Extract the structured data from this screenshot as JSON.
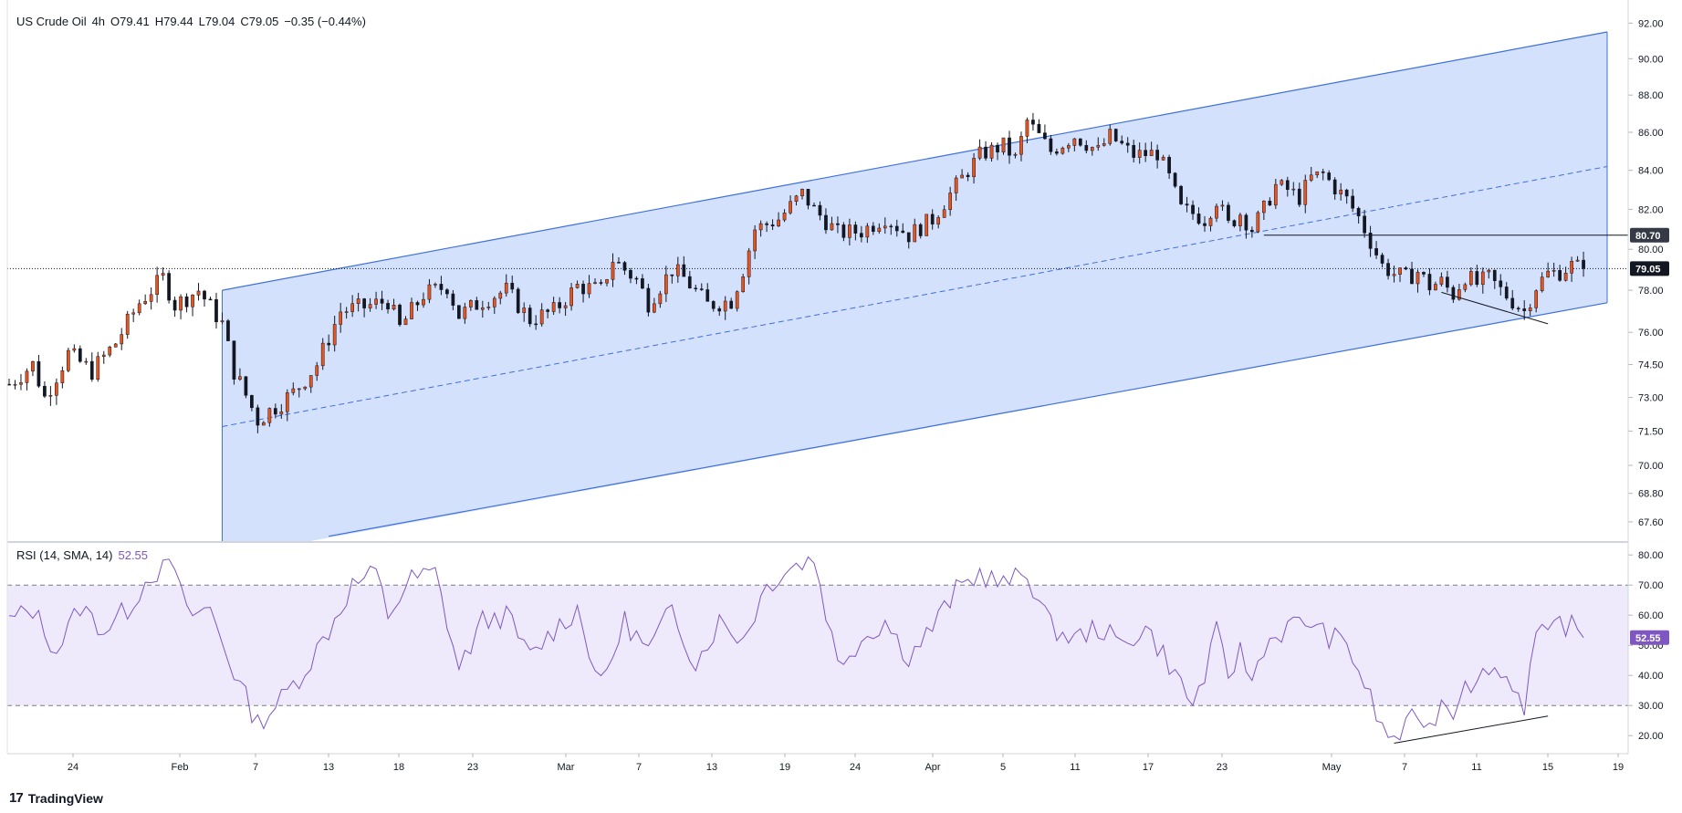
{
  "header": {
    "symbol": "US Crude Oil",
    "interval": "4h",
    "open": "O79.41",
    "high": "H79.44",
    "low": "L79.04",
    "close": "C79.05",
    "change": "−0.35 (−0.44%)"
  },
  "rsi_header": {
    "label": "RSI (14, SMA, 14)",
    "value": "52.55"
  },
  "brand": {
    "name": "TradingView",
    "logo": "17"
  },
  "colors": {
    "up": "#e8541c",
    "down": "#131722",
    "channel_fill": "#d4e1fc",
    "channel_line": "#3d6fe0",
    "rsi_line": "#7e57c2",
    "rsi_band": "#efeafb",
    "price_tag": "#131722"
  },
  "chart_data": [
    {
      "type": "candlestick",
      "title": "US Crude Oil, 4h",
      "y_ticks": [
        "92.00",
        "90.00",
        "88.00",
        "86.00",
        "84.00",
        "82.00",
        "80.00",
        "78.00",
        "76.00",
        "74.50",
        "73.00",
        "71.50",
        "70.00",
        "68.80",
        "67.60"
      ],
      "x_ticks": [
        "24",
        "Feb",
        "7",
        "13",
        "18",
        "23",
        "Mar",
        "7",
        "13",
        "19",
        "24",
        "Apr",
        "5",
        "11",
        "17",
        "23",
        "May",
        "7",
        "11",
        "15",
        "19"
      ],
      "ylim": [
        66.8,
        92.8
      ],
      "scale": "log",
      "price_labels": [
        {
          "label": "80.70",
          "value": 80.7
        },
        {
          "label": "79.05",
          "value": 79.05
        }
      ],
      "path_points": [
        {
          "t": 0,
          "p": 73.6
        },
        {
          "t": 2,
          "p": 74.5
        },
        {
          "t": 3,
          "p": 73.0
        },
        {
          "t": 5,
          "p": 75.0
        },
        {
          "t": 7,
          "p": 74.2
        },
        {
          "t": 9,
          "p": 75.5
        },
        {
          "t": 11,
          "p": 77.4
        },
        {
          "t": 13,
          "p": 78.6
        },
        {
          "t": 14,
          "p": 77.3
        },
        {
          "t": 16,
          "p": 78.0
        },
        {
          "t": 18,
          "p": 76.4
        },
        {
          "t": 19,
          "p": 74.2
        },
        {
          "t": 21,
          "p": 72.0
        },
        {
          "t": 22,
          "p": 72.4
        },
        {
          "t": 24,
          "p": 73.2
        },
        {
          "t": 26,
          "p": 74.5
        },
        {
          "t": 28,
          "p": 77.0
        },
        {
          "t": 30,
          "p": 77.2
        },
        {
          "t": 32,
          "p": 77.5
        },
        {
          "t": 33,
          "p": 76.2
        },
        {
          "t": 35,
          "p": 77.8
        },
        {
          "t": 37,
          "p": 78.2
        },
        {
          "t": 38,
          "p": 76.8
        },
        {
          "t": 40,
          "p": 77.5
        },
        {
          "t": 42,
          "p": 78.0
        },
        {
          "t": 44,
          "p": 76.6
        },
        {
          "t": 46,
          "p": 77.0
        },
        {
          "t": 48,
          "p": 78.2
        },
        {
          "t": 50,
          "p": 78.0
        },
        {
          "t": 51,
          "p": 79.5
        },
        {
          "t": 53,
          "p": 78.5
        },
        {
          "t": 54,
          "p": 77.4
        },
        {
          "t": 56,
          "p": 79.0
        },
        {
          "t": 57,
          "p": 78.6
        },
        {
          "t": 59,
          "p": 77.3
        },
        {
          "t": 61,
          "p": 77.5
        },
        {
          "t": 62,
          "p": 79.0
        },
        {
          "t": 63,
          "p": 81.0
        },
        {
          "t": 65,
          "p": 81.5
        },
        {
          "t": 67,
          "p": 82.8
        },
        {
          "t": 68,
          "p": 82.0
        },
        {
          "t": 70,
          "p": 80.8
        },
        {
          "t": 72,
          "p": 80.9
        },
        {
          "t": 74,
          "p": 81.6
        },
        {
          "t": 76,
          "p": 80.7
        },
        {
          "t": 78,
          "p": 81.5
        },
        {
          "t": 80,
          "p": 83.2
        },
        {
          "t": 82,
          "p": 84.8
        },
        {
          "t": 84,
          "p": 85.3
        },
        {
          "t": 85,
          "p": 84.6
        },
        {
          "t": 86,
          "p": 86.6
        },
        {
          "t": 87,
          "p": 85.8
        },
        {
          "t": 88,
          "p": 85.0
        },
        {
          "t": 90,
          "p": 85.8
        },
        {
          "t": 92,
          "p": 85.0
        },
        {
          "t": 93,
          "p": 85.8
        },
        {
          "t": 95,
          "p": 84.8
        },
        {
          "t": 97,
          "p": 84.9
        },
        {
          "t": 98,
          "p": 83.6
        },
        {
          "t": 99,
          "p": 82.0
        },
        {
          "t": 100,
          "p": 81.8
        },
        {
          "t": 101,
          "p": 81.5
        },
        {
          "t": 102,
          "p": 82.5
        },
        {
          "t": 103,
          "p": 81.2
        },
        {
          "t": 104,
          "p": 81.8
        },
        {
          "t": 105,
          "p": 81.0
        },
        {
          "t": 106,
          "p": 82.0
        },
        {
          "t": 107,
          "p": 83.2
        },
        {
          "t": 108,
          "p": 83.0
        },
        {
          "t": 109,
          "p": 82.6
        },
        {
          "t": 110,
          "p": 83.6
        },
        {
          "t": 111,
          "p": 83.8
        },
        {
          "t": 112,
          "p": 83.1
        },
        {
          "t": 113,
          "p": 82.5
        },
        {
          "t": 114,
          "p": 81.6
        },
        {
          "t": 115,
          "p": 80.4
        },
        {
          "t": 116,
          "p": 79.2
        },
        {
          "t": 117,
          "p": 78.8
        },
        {
          "t": 118,
          "p": 78.6
        },
        {
          "t": 119,
          "p": 78.9
        },
        {
          "t": 120,
          "p": 78.2
        },
        {
          "t": 121,
          "p": 78.4
        },
        {
          "t": 122,
          "p": 77.8
        },
        {
          "t": 123,
          "p": 78.7
        },
        {
          "t": 124,
          "p": 78.3
        },
        {
          "t": 125,
          "p": 78.6
        },
        {
          "t": 126,
          "p": 78.0
        },
        {
          "t": 127,
          "p": 77.5
        },
        {
          "t": 128,
          "p": 77.0
        },
        {
          "t": 129,
          "p": 78.2
        },
        {
          "t": 130,
          "p": 78.8
        },
        {
          "t": 131,
          "p": 78.9
        },
        {
          "t": 132,
          "p": 79.2
        },
        {
          "t": 133,
          "p": 79.05
        }
      ],
      "channel": {
        "upper": {
          "t1": 18,
          "p1": 78.0,
          "t2": 135,
          "p2": 91.5
        },
        "mid": {
          "t1": 18,
          "p1": 71.7,
          "t2": 135,
          "p2": 84.2
        },
        "lower": {
          "t1": 27,
          "p1": 67.0,
          "t2": 135,
          "p2": 77.4
        }
      },
      "resistance": {
        "value": 80.7,
        "t_start": 106
      },
      "trendline": {
        "t1": 121,
        "p1": 77.9,
        "t2": 130,
        "p2": 76.4
      }
    },
    {
      "type": "line",
      "title": "RSI (14, SMA, 14)",
      "y_ticks": [
        "80.00",
        "70.00",
        "60.00",
        "50.00",
        "40.00",
        "30.00",
        "20.00"
      ],
      "ylim": [
        14,
        84
      ],
      "bands": [
        30,
        70
      ],
      "last_value": 52.55,
      "points": [
        {
          "t": 0,
          "v": 58
        },
        {
          "t": 2,
          "v": 62
        },
        {
          "t": 4,
          "v": 48
        },
        {
          "t": 6,
          "v": 63
        },
        {
          "t": 8,
          "v": 55
        },
        {
          "t": 10,
          "v": 62
        },
        {
          "t": 12,
          "v": 74
        },
        {
          "t": 14,
          "v": 76
        },
        {
          "t": 15,
          "v": 60
        },
        {
          "t": 17,
          "v": 62
        },
        {
          "t": 19,
          "v": 41
        },
        {
          "t": 21,
          "v": 24
        },
        {
          "t": 23,
          "v": 32
        },
        {
          "t": 25,
          "v": 42
        },
        {
          "t": 27,
          "v": 55
        },
        {
          "t": 29,
          "v": 70
        },
        {
          "t": 31,
          "v": 74
        },
        {
          "t": 32,
          "v": 60
        },
        {
          "t": 34,
          "v": 72
        },
        {
          "t": 36,
          "v": 74
        },
        {
          "t": 38,
          "v": 42
        },
        {
          "t": 40,
          "v": 58
        },
        {
          "t": 42,
          "v": 60
        },
        {
          "t": 44,
          "v": 46
        },
        {
          "t": 46,
          "v": 55
        },
        {
          "t": 48,
          "v": 62
        },
        {
          "t": 50,
          "v": 36
        },
        {
          "t": 52,
          "v": 58
        },
        {
          "t": 54,
          "v": 48
        },
        {
          "t": 56,
          "v": 62
        },
        {
          "t": 58,
          "v": 44
        },
        {
          "t": 60,
          "v": 58
        },
        {
          "t": 62,
          "v": 52
        },
        {
          "t": 64,
          "v": 70
        },
        {
          "t": 66,
          "v": 76
        },
        {
          "t": 68,
          "v": 79
        },
        {
          "t": 70,
          "v": 44
        },
        {
          "t": 72,
          "v": 52
        },
        {
          "t": 74,
          "v": 58
        },
        {
          "t": 76,
          "v": 46
        },
        {
          "t": 78,
          "v": 56
        },
        {
          "t": 80,
          "v": 68
        },
        {
          "t": 82,
          "v": 74
        },
        {
          "t": 84,
          "v": 70
        },
        {
          "t": 86,
          "v": 74
        },
        {
          "t": 88,
          "v": 56
        },
        {
          "t": 90,
          "v": 52
        },
        {
          "t": 92,
          "v": 56
        },
        {
          "t": 94,
          "v": 50
        },
        {
          "t": 96,
          "v": 56
        },
        {
          "t": 98,
          "v": 44
        },
        {
          "t": 100,
          "v": 30
        },
        {
          "t": 101,
          "v": 40
        },
        {
          "t": 102,
          "v": 54
        },
        {
          "t": 103,
          "v": 40
        },
        {
          "t": 104,
          "v": 48
        },
        {
          "t": 105,
          "v": 38
        },
        {
          "t": 106,
          "v": 50
        },
        {
          "t": 108,
          "v": 56
        },
        {
          "t": 110,
          "v": 58
        },
        {
          "t": 111,
          "v": 54
        },
        {
          "t": 113,
          "v": 50
        },
        {
          "t": 114,
          "v": 42
        },
        {
          "t": 115,
          "v": 32
        },
        {
          "t": 116,
          "v": 22
        },
        {
          "t": 117,
          "v": 19
        },
        {
          "t": 118,
          "v": 22
        },
        {
          "t": 119,
          "v": 28
        },
        {
          "t": 120,
          "v": 22
        },
        {
          "t": 121,
          "v": 32
        },
        {
          "t": 122,
          "v": 28
        },
        {
          "t": 123,
          "v": 40
        },
        {
          "t": 124,
          "v": 36
        },
        {
          "t": 125,
          "v": 44
        },
        {
          "t": 126,
          "v": 40
        },
        {
          "t": 127,
          "v": 38
        },
        {
          "t": 128,
          "v": 30
        },
        {
          "t": 129,
          "v": 54
        },
        {
          "t": 130,
          "v": 52
        },
        {
          "t": 131,
          "v": 58
        },
        {
          "t": 132,
          "v": 56
        },
        {
          "t": 133,
          "v": 52.55
        }
      ],
      "trendline": {
        "t1": 117,
        "v1": 17.5,
        "t2": 130,
        "v2": 26.5
      }
    }
  ]
}
